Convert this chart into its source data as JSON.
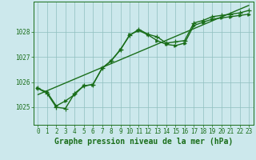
{
  "xlabel": "Graphe pression niveau de la mer (hPa)",
  "xlim": [
    -0.5,
    23.5
  ],
  "ylim": [
    1024.3,
    1029.2
  ],
  "yticks": [
    1025,
    1026,
    1027,
    1028
  ],
  "xticks": [
    0,
    1,
    2,
    3,
    4,
    5,
    6,
    7,
    8,
    9,
    10,
    11,
    12,
    13,
    14,
    15,
    16,
    17,
    18,
    19,
    20,
    21,
    22,
    23
  ],
  "bg_color": "#cce8ec",
  "line_color": "#1a6e1a",
  "grid_color": "#8fbfbf",
  "series1_x": [
    0,
    1,
    2,
    3,
    4,
    5,
    6,
    7,
    8,
    9,
    10,
    11,
    12,
    13,
    14,
    15,
    16,
    17,
    18,
    19,
    20,
    21,
    22,
    23
  ],
  "series1_y": [
    1025.75,
    1025.55,
    1025.0,
    1024.95,
    1025.55,
    1025.85,
    1025.9,
    1026.55,
    1026.85,
    1027.3,
    1027.85,
    1028.1,
    1027.9,
    1027.8,
    1027.55,
    1027.6,
    1027.65,
    1028.35,
    1028.45,
    1028.6,
    1028.65,
    1028.7,
    1028.75,
    1028.85
  ],
  "series2_x": [
    0,
    1,
    2,
    3,
    4,
    5,
    6,
    7,
    8,
    9,
    10,
    11,
    12,
    13,
    14,
    15,
    16,
    17,
    18,
    19,
    20,
    21,
    22,
    23
  ],
  "series2_y": [
    1025.75,
    1025.6,
    1025.05,
    1025.25,
    1025.5,
    1025.85,
    1025.9,
    1026.55,
    1026.85,
    1027.28,
    1027.88,
    1028.05,
    1027.88,
    1027.65,
    1027.5,
    1027.45,
    1027.55,
    1028.25,
    1028.38,
    1028.5,
    1028.55,
    1028.6,
    1028.65,
    1028.7
  ],
  "trend_x": [
    0,
    23
  ],
  "trend_y": [
    1025.5,
    1029.05
  ],
  "font_color": "#1a6e1a",
  "marker_size": 3,
  "line_width": 1.0,
  "tick_fontsize": 5.5,
  "label_fontsize": 7
}
